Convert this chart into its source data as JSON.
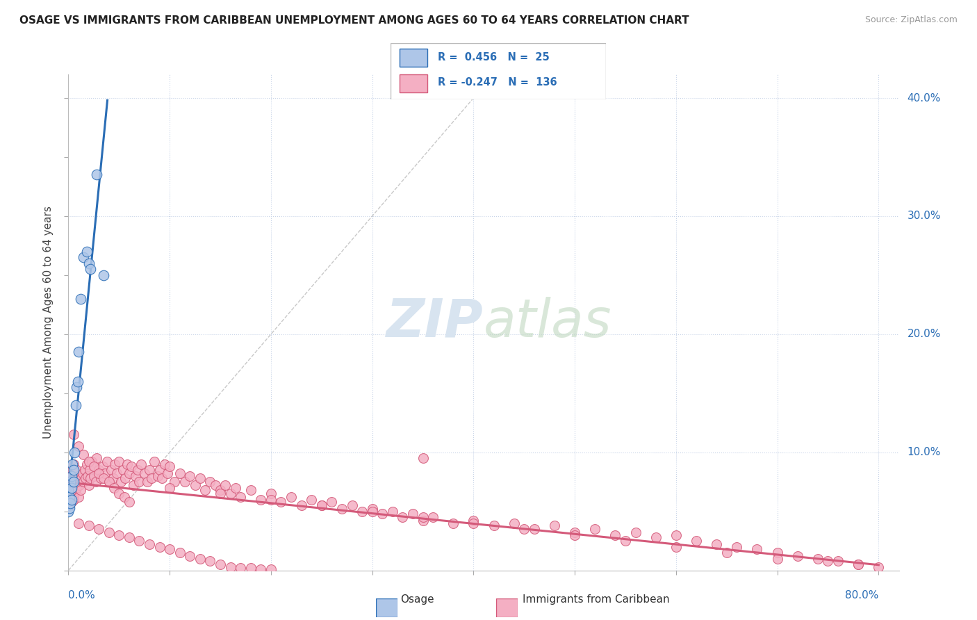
{
  "title": "OSAGE VS IMMIGRANTS FROM CARIBBEAN UNEMPLOYMENT AMONG AGES 60 TO 64 YEARS CORRELATION CHART",
  "source": "Source: ZipAtlas.com",
  "ylabel": "Unemployment Among Ages 60 to 64 years",
  "osage_R": 0.456,
  "osage_N": 25,
  "carib_R": -0.247,
  "carib_N": 136,
  "osage_color": "#aec6e8",
  "osage_line_color": "#2a6db5",
  "carib_color": "#f4afc3",
  "carib_line_color": "#d45a7a",
  "stat_color": "#2a6db5",
  "background_color": "#ffffff",
  "grid_color": "#c8d4e8",
  "watermark_color": "#d8e4f0",
  "xlim": [
    0.0,
    0.82
  ],
  "ylim": [
    0.0,
    0.42
  ],
  "osage_x": [
    0.0,
    0.0,
    0.0,
    0.001,
    0.001,
    0.002,
    0.002,
    0.003,
    0.003,
    0.003,
    0.004,
    0.005,
    0.005,
    0.006,
    0.007,
    0.008,
    0.009,
    0.01,
    0.012,
    0.015,
    0.018,
    0.02,
    0.022,
    0.028,
    0.035
  ],
  "osage_y": [
    0.05,
    0.058,
    0.068,
    0.053,
    0.062,
    0.057,
    0.075,
    0.06,
    0.07,
    0.08,
    0.09,
    0.075,
    0.085,
    0.1,
    0.14,
    0.155,
    0.16,
    0.185,
    0.23,
    0.265,
    0.27,
    0.26,
    0.255,
    0.335,
    0.25
  ],
  "carib_x": [
    0.0,
    0.0,
    0.0,
    0.0,
    0.0,
    0.001,
    0.001,
    0.001,
    0.001,
    0.002,
    0.002,
    0.002,
    0.003,
    0.003,
    0.003,
    0.004,
    0.004,
    0.004,
    0.005,
    0.005,
    0.005,
    0.006,
    0.006,
    0.007,
    0.007,
    0.008,
    0.008,
    0.009,
    0.01,
    0.01,
    0.011,
    0.012,
    0.013,
    0.014,
    0.015,
    0.016,
    0.017,
    0.018,
    0.019,
    0.02,
    0.021,
    0.022,
    0.023,
    0.025,
    0.026,
    0.027,
    0.028,
    0.03,
    0.032,
    0.034,
    0.036,
    0.038,
    0.04,
    0.042,
    0.044,
    0.046,
    0.048,
    0.05,
    0.052,
    0.054,
    0.056,
    0.058,
    0.06,
    0.062,
    0.064,
    0.066,
    0.068,
    0.07,
    0.072,
    0.075,
    0.078,
    0.08,
    0.082,
    0.085,
    0.088,
    0.09,
    0.092,
    0.095,
    0.098,
    0.1,
    0.105,
    0.11,
    0.115,
    0.12,
    0.125,
    0.13,
    0.135,
    0.14,
    0.145,
    0.15,
    0.155,
    0.16,
    0.165,
    0.17,
    0.18,
    0.19,
    0.2,
    0.21,
    0.22,
    0.23,
    0.24,
    0.25,
    0.26,
    0.27,
    0.28,
    0.29,
    0.3,
    0.31,
    0.32,
    0.33,
    0.34,
    0.35,
    0.36,
    0.38,
    0.4,
    0.42,
    0.44,
    0.46,
    0.48,
    0.5,
    0.52,
    0.54,
    0.56,
    0.58,
    0.6,
    0.62,
    0.64,
    0.66,
    0.68,
    0.7,
    0.72,
    0.74,
    0.76,
    0.78,
    0.8
  ],
  "carib_y": [
    0.058,
    0.062,
    0.07,
    0.075,
    0.08,
    0.055,
    0.065,
    0.072,
    0.078,
    0.06,
    0.068,
    0.08,
    0.058,
    0.07,
    0.082,
    0.062,
    0.072,
    0.085,
    0.06,
    0.075,
    0.09,
    0.065,
    0.078,
    0.068,
    0.082,
    0.07,
    0.085,
    0.075,
    0.062,
    0.08,
    0.072,
    0.068,
    0.078,
    0.082,
    0.075,
    0.085,
    0.078,
    0.09,
    0.08,
    0.072,
    0.085,
    0.078,
    0.092,
    0.08,
    0.088,
    0.075,
    0.095,
    0.085,
    0.078,
    0.088,
    0.082,
    0.092,
    0.075,
    0.085,
    0.078,
    0.09,
    0.082,
    0.092,
    0.075,
    0.085,
    0.078,
    0.09,
    0.082,
    0.088,
    0.072,
    0.08,
    0.085,
    0.075,
    0.09,
    0.082,
    0.075,
    0.085,
    0.078,
    0.092,
    0.08,
    0.085,
    0.078,
    0.09,
    0.082,
    0.088,
    0.075,
    0.082,
    0.075,
    0.08,
    0.072,
    0.078,
    0.068,
    0.075,
    0.072,
    0.068,
    0.072,
    0.065,
    0.07,
    0.062,
    0.068,
    0.06,
    0.065,
    0.058,
    0.062,
    0.055,
    0.06,
    0.055,
    0.058,
    0.052,
    0.055,
    0.05,
    0.052,
    0.048,
    0.05,
    0.045,
    0.048,
    0.042,
    0.045,
    0.04,
    0.042,
    0.038,
    0.04,
    0.035,
    0.038,
    0.032,
    0.035,
    0.03,
    0.032,
    0.028,
    0.03,
    0.025,
    0.022,
    0.02,
    0.018,
    0.015,
    0.012,
    0.01,
    0.008,
    0.005,
    0.003
  ],
  "carib_x_extra": [
    0.005,
    0.01,
    0.015,
    0.02,
    0.025,
    0.03,
    0.035,
    0.04,
    0.045,
    0.05,
    0.055,
    0.06,
    0.1,
    0.15,
    0.2,
    0.25,
    0.3,
    0.35,
    0.4,
    0.45,
    0.5,
    0.55,
    0.6,
    0.65,
    0.7,
    0.75,
    0.78,
    0.01,
    0.02,
    0.03,
    0.04,
    0.05,
    0.06,
    0.07,
    0.08,
    0.09,
    0.1,
    0.11,
    0.12,
    0.13,
    0.14,
    0.15,
    0.16,
    0.17,
    0.18,
    0.19,
    0.2,
    0.35
  ],
  "carib_y_extra": [
    0.115,
    0.105,
    0.098,
    0.092,
    0.088,
    0.082,
    0.078,
    0.075,
    0.07,
    0.065,
    0.062,
    0.058,
    0.07,
    0.065,
    0.06,
    0.055,
    0.05,
    0.045,
    0.04,
    0.035,
    0.03,
    0.025,
    0.02,
    0.015,
    0.01,
    0.008,
    0.005,
    0.04,
    0.038,
    0.035,
    0.032,
    0.03,
    0.028,
    0.025,
    0.022,
    0.02,
    0.018,
    0.015,
    0.012,
    0.01,
    0.008,
    0.005,
    0.003,
    0.002,
    0.002,
    0.001,
    0.001,
    0.095
  ]
}
